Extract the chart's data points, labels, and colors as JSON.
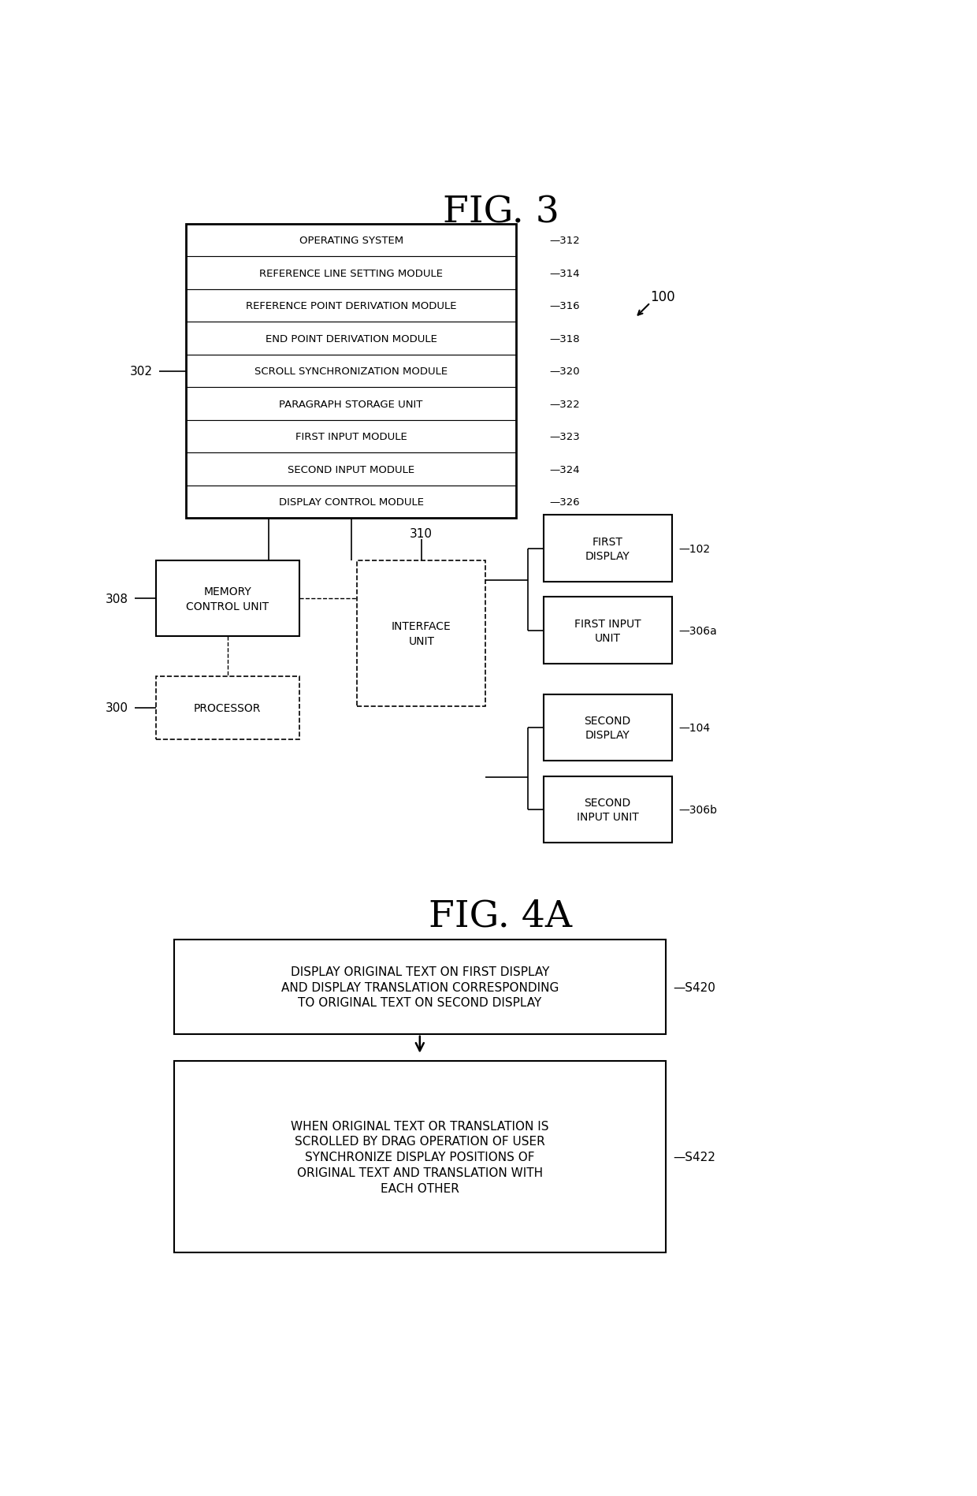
{
  "fig3_title": "FIG. 3",
  "fig4a_title": "FIG. 4A",
  "bg_color": "#ffffff",
  "modules": [
    "OPERATING SYSTEM",
    "REFERENCE LINE SETTING MODULE",
    "REFERENCE POINT DERIVATION MODULE",
    "END POINT DERIVATION MODULE",
    "SCROLL SYNCHRONIZATION MODULE",
    "PARAGRAPH STORAGE UNIT",
    "FIRST INPUT MODULE",
    "SECOND INPUT MODULE",
    "DISPLAY CONTROL MODULE"
  ],
  "module_labels": [
    "312",
    "314",
    "316",
    "318",
    "320",
    "322",
    "323",
    "324",
    "326"
  ],
  "label_302": "302",
  "label_308": "308",
  "label_310": "310",
  "label_300": "300",
  "label_100": "100",
  "label_102": "102",
  "label_104": "104",
  "label_306a": "306a",
  "label_306b": "306b",
  "memory_control_text": "MEMORY\nCONTROL UNIT",
  "processor_text": "PROCESSOR",
  "interface_text": "INTERFACE\nUNIT",
  "first_display_text": "FIRST\nDISPLAY",
  "first_input_unit_text": "FIRST INPUT\nUNIT",
  "second_display_text": "SECOND\nDISPLAY",
  "second_input_unit_text": "SECOND\nINPUT UNIT",
  "s420_label": "S420",
  "s422_label": "S422",
  "s420_text": "DISPLAY ORIGINAL TEXT ON FIRST DISPLAY\nAND DISPLAY TRANSLATION CORRESPONDING\nTO ORIGINAL TEXT ON SECOND DISPLAY",
  "s422_text": "WHEN ORIGINAL TEXT OR TRANSLATION IS\nSCROLLED BY DRAG OPERATION OF USER\nSYNCHRONIZE DISPLAY POSITIONS OF\nORIGINAL TEXT AND TRANSLATION WITH\nEACH OTHER"
}
